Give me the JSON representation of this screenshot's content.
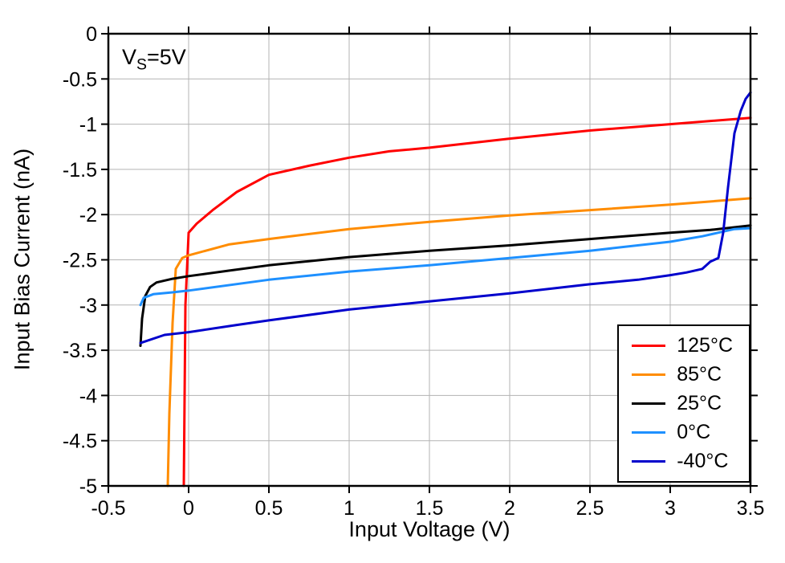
{
  "chart_data": {
    "type": "line",
    "title": "",
    "annotation": {
      "prefix": "V",
      "sub": "S",
      "suffix": "=5V"
    },
    "xlabel": "Input Voltage (V)",
    "ylabel": "Input Bias Current (nA)",
    "xlim": [
      -0.5,
      3.5
    ],
    "ylim": [
      -5,
      0
    ],
    "grid": true,
    "grid_color": "#b3b3b3",
    "axis_color": "#000000",
    "legend_position": "bottom-right",
    "xtick_values": [
      -0.5,
      0,
      0.5,
      1,
      1.5,
      2,
      2.5,
      3,
      3.5
    ],
    "xtick_labels": [
      "-0.5",
      "0",
      "0.5",
      "1",
      "1.5",
      "2",
      "2.5",
      "3",
      "3.5"
    ],
    "ytick_values": [
      0,
      -0.5,
      -1,
      -1.5,
      -2,
      -2.5,
      -3,
      -3.5,
      -4,
      -4.5,
      -5
    ],
    "ytick_labels": [
      "0",
      "-0.5",
      "-1",
      "-1.5",
      "-2",
      "-2.5",
      "-3",
      "-3.5",
      "-4",
      "-4.5",
      "-5"
    ],
    "series": [
      {
        "name": "125°C",
        "color": "#FF0000",
        "points": [
          [
            -0.03,
            -5.0
          ],
          [
            -0.02,
            -3.0
          ],
          [
            0.0,
            -2.2
          ],
          [
            0.05,
            -2.1
          ],
          [
            0.15,
            -1.95
          ],
          [
            0.3,
            -1.75
          ],
          [
            0.5,
            -1.56
          ],
          [
            0.75,
            -1.46
          ],
          [
            1.0,
            -1.37
          ],
          [
            1.25,
            -1.3
          ],
          [
            1.5,
            -1.26
          ],
          [
            2.0,
            -1.16
          ],
          [
            2.5,
            -1.07
          ],
          [
            3.0,
            -1.0
          ],
          [
            3.5,
            -0.93
          ]
        ]
      },
      {
        "name": "85°C",
        "color": "#FF8C00",
        "points": [
          [
            -0.13,
            -5.0
          ],
          [
            -0.12,
            -4.2
          ],
          [
            -0.1,
            -3.2
          ],
          [
            -0.08,
            -2.6
          ],
          [
            -0.04,
            -2.48
          ],
          [
            0.0,
            -2.45
          ],
          [
            0.25,
            -2.33
          ],
          [
            0.5,
            -2.27
          ],
          [
            1.0,
            -2.16
          ],
          [
            1.5,
            -2.08
          ],
          [
            2.0,
            -2.01
          ],
          [
            2.5,
            -1.95
          ],
          [
            3.0,
            -1.89
          ],
          [
            3.5,
            -1.82
          ]
        ]
      },
      {
        "name": "25°C",
        "color": "#000000",
        "points": [
          [
            -0.3,
            -3.45
          ],
          [
            -0.29,
            -3.15
          ],
          [
            -0.27,
            -2.9
          ],
          [
            -0.24,
            -2.8
          ],
          [
            -0.2,
            -2.75
          ],
          [
            -0.1,
            -2.71
          ],
          [
            0.0,
            -2.68
          ],
          [
            0.25,
            -2.62
          ],
          [
            0.5,
            -2.56
          ],
          [
            1.0,
            -2.47
          ],
          [
            1.5,
            -2.4
          ],
          [
            2.0,
            -2.34
          ],
          [
            2.5,
            -2.27
          ],
          [
            3.0,
            -2.2
          ],
          [
            3.25,
            -2.17
          ],
          [
            3.5,
            -2.12
          ]
        ]
      },
      {
        "name": "0°C",
        "color": "#1E90FF",
        "points": [
          [
            -0.3,
            -3.0
          ],
          [
            -0.28,
            -2.92
          ],
          [
            -0.22,
            -2.88
          ],
          [
            -0.1,
            -2.86
          ],
          [
            0.0,
            -2.84
          ],
          [
            0.5,
            -2.72
          ],
          [
            1.0,
            -2.63
          ],
          [
            1.5,
            -2.56
          ],
          [
            2.0,
            -2.48
          ],
          [
            2.5,
            -2.4
          ],
          [
            3.0,
            -2.3
          ],
          [
            3.2,
            -2.24
          ],
          [
            3.3,
            -2.2
          ],
          [
            3.4,
            -2.16
          ],
          [
            3.5,
            -2.15
          ]
        ]
      },
      {
        "name": "-40°C",
        "color": "#0000CC",
        "points": [
          [
            -0.3,
            -3.42
          ],
          [
            -0.15,
            -3.33
          ],
          [
            0.0,
            -3.3
          ],
          [
            0.3,
            -3.22
          ],
          [
            0.5,
            -3.17
          ],
          [
            1.0,
            -3.05
          ],
          [
            1.5,
            -2.96
          ],
          [
            2.0,
            -2.87
          ],
          [
            2.5,
            -2.77
          ],
          [
            2.8,
            -2.72
          ],
          [
            3.0,
            -2.67
          ],
          [
            3.1,
            -2.64
          ],
          [
            3.2,
            -2.6
          ],
          [
            3.25,
            -2.52
          ],
          [
            3.3,
            -2.48
          ],
          [
            3.33,
            -2.2
          ],
          [
            3.36,
            -1.7
          ],
          [
            3.4,
            -1.1
          ],
          [
            3.44,
            -0.85
          ],
          [
            3.47,
            -0.72
          ],
          [
            3.5,
            -0.65
          ]
        ]
      }
    ]
  }
}
